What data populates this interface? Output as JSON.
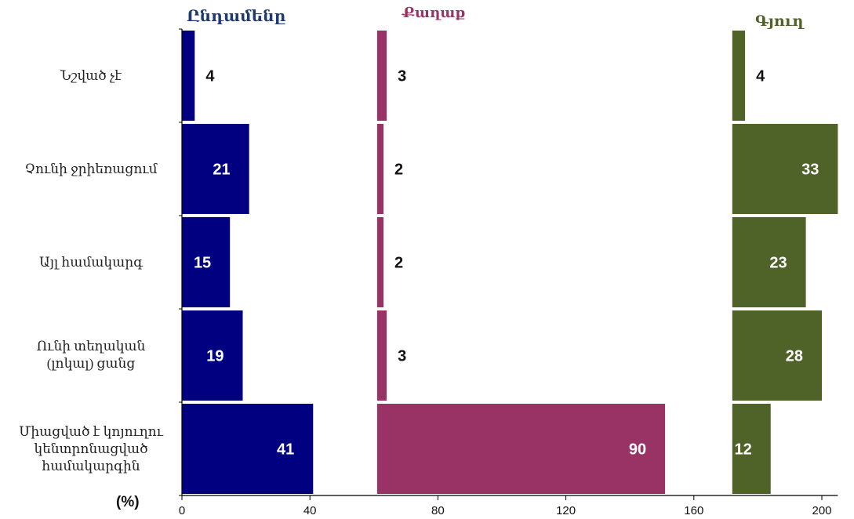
{
  "unit_label": "(%)",
  "chart_data": {
    "type": "bar",
    "orientation": "horizontal",
    "layout": "panels on shared axis",
    "categories": [
      "Նշված չէ",
      "Չունի ջրիեռացում",
      "Այլ համակարգ",
      "Ունի տեղական (լոկալ) ցանց",
      "Միացված է կոյուղու կենտրոնացված համակարգին"
    ],
    "category_lines": [
      [
        "Նշված չէ"
      ],
      [
        "Չունի ջրիեռացում"
      ],
      [
        "Այլ համակարգ"
      ],
      [
        "Ունի տեղական",
        "(լոկալ) ցանց"
      ],
      [
        "Միացված է կոյուղու",
        "կենտրոնացված",
        "համակարգին"
      ]
    ],
    "series": [
      {
        "name": "Ընդամենը",
        "values": [
          4,
          21,
          15,
          19,
          41
        ],
        "color": "#000080",
        "offset": 0
      },
      {
        "name": "Քաղաք",
        "values": [
          3,
          2,
          2,
          3,
          90
        ],
        "color": "#993366",
        "offset": 61
      },
      {
        "name": "Գյուղ",
        "values": [
          4,
          33,
          23,
          28,
          12
        ],
        "color": "#4F6228",
        "offset": 172
      }
    ],
    "xticks": [
      0,
      40,
      80,
      120,
      160,
      200
    ],
    "xlim": [
      0,
      205
    ],
    "grid": false,
    "legend": "panel titles"
  }
}
